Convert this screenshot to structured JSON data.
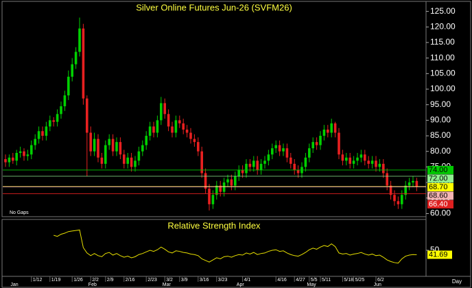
{
  "chart_data": [
    {
      "type": "candlestick",
      "title": "Silver Online Futures Jun-26 (SVFM26)",
      "note": "No Gaps",
      "period": "Day",
      "categories": [
        null,
        null,
        null,
        null,
        null,
        null,
        null,
        "1/12",
        null,
        null,
        null,
        null,
        "1/19",
        null,
        null,
        null,
        null,
        null,
        "1/26",
        null,
        null,
        null,
        null,
        "2/2",
        null,
        null,
        null,
        "2/9",
        null,
        null,
        null,
        null,
        "2/16",
        null,
        null,
        null,
        null,
        null,
        "2/23",
        null,
        null,
        null,
        null,
        "3/2",
        null,
        null,
        null,
        "3/9",
        null,
        null,
        null,
        null,
        "3/16",
        null,
        null,
        null,
        null,
        "3/23",
        null,
        null,
        null,
        null,
        null,
        null,
        "4/1",
        null,
        null,
        null,
        null,
        null,
        null,
        null,
        null,
        "4/16",
        null,
        null,
        null,
        null,
        "4/27",
        null,
        null,
        null,
        "5/5",
        null,
        null,
        "5/11",
        null,
        null,
        null,
        null,
        null,
        "5/18",
        null,
        null,
        "5/25",
        null,
        null,
        null,
        null,
        null,
        "6/2",
        null,
        null,
        null,
        null,
        null,
        null,
        null,
        null,
        null,
        null,
        null
      ],
      "months": [
        null,
        "Jan",
        null,
        null,
        null,
        null,
        null,
        null,
        null,
        null,
        null,
        null,
        null,
        null,
        null,
        null,
        null,
        null,
        null,
        null,
        null,
        null,
        "Feb",
        null,
        null,
        null,
        null,
        null,
        null,
        null,
        null,
        null,
        null,
        null,
        null,
        null,
        null,
        null,
        null,
        null,
        null,
        null,
        "Mar",
        null,
        null,
        null,
        null,
        null,
        null,
        null,
        null,
        null,
        null,
        null,
        null,
        null,
        null,
        null,
        null,
        null,
        null,
        null,
        "Apr",
        null,
        null,
        null,
        null,
        null,
        null,
        null,
        null,
        null,
        null,
        null,
        null,
        null,
        null,
        null,
        null,
        null,
        null,
        "May",
        null,
        null,
        null,
        null,
        null,
        null,
        null,
        null,
        null,
        null,
        null,
        null,
        null,
        null,
        null,
        null,
        null,
        "Jun",
        null,
        null,
        null,
        null,
        null,
        null,
        null,
        null,
        null,
        null,
        null
      ],
      "series": [
        {
          "up_color": "#00d000",
          "down_color": "#e82020",
          "open": [
            77.5,
            76.5,
            78,
            77,
            79.5,
            80,
            78.5,
            79,
            82,
            84,
            86.5,
            85,
            88,
            90,
            89.5,
            92,
            94.5,
            98,
            104,
            108,
            112,
            119.5,
            97,
            86,
            80,
            84,
            78,
            76,
            82,
            84,
            80,
            83,
            79,
            76,
            78,
            75,
            77,
            80,
            82,
            85,
            88,
            86,
            90,
            95.5,
            92,
            88,
            86,
            90,
            89,
            87,
            86,
            84,
            83,
            80,
            73,
            68,
            63,
            66,
            69,
            67,
            70,
            71,
            69,
            72,
            74,
            73,
            76,
            75,
            77,
            74,
            76,
            77,
            79,
            81,
            82,
            80,
            81,
            78,
            76,
            74,
            73,
            75,
            78,
            81,
            83,
            82,
            85,
            87,
            86,
            89,
            86,
            79,
            77,
            78,
            76,
            77,
            78,
            79,
            77,
            76,
            77,
            75,
            76,
            73,
            69,
            66,
            64,
            63,
            66,
            69,
            70,
            70.5
          ],
          "high": [
            79,
            79,
            79.5,
            80.5,
            81.5,
            81,
            80.5,
            83.5,
            85.5,
            88,
            88,
            89.5,
            91.5,
            91,
            93.5,
            96,
            99.5,
            106,
            110,
            113.5,
            123,
            121,
            98,
            88,
            86,
            85.5,
            79.5,
            83.5,
            85.5,
            85.5,
            84.5,
            84.5,
            80.5,
            79.5,
            79.5,
            78.5,
            81.5,
            83.5,
            86.5,
            89.5,
            89.5,
            91.5,
            97.5,
            97,
            93.5,
            89.5,
            91.5,
            91.5,
            90.5,
            88.5,
            87.5,
            85.5,
            84.5,
            81.5,
            74.5,
            69.5,
            67.5,
            70.5,
            70.5,
            71.5,
            72.5,
            72.5,
            73.5,
            75.5,
            75.5,
            77.5,
            77.5,
            78.5,
            78.5,
            77.5,
            78.5,
            80.5,
            82.5,
            83.5,
            83.5,
            82.5,
            82.5,
            79.5,
            77.5,
            75.5,
            76.5,
            79.5,
            82.5,
            84.5,
            84.5,
            86.5,
            88.5,
            88.5,
            90.5,
            89.5,
            87.5,
            80.5,
            79.5,
            79.5,
            78.5,
            79.5,
            80.5,
            80.5,
            78.5,
            78.5,
            78.5,
            77.5,
            77.5,
            74.5,
            70.5,
            67.5,
            65.5,
            67.5,
            70.5,
            71.5,
            72,
            71.5
          ],
          "low": [
            75,
            75,
            76,
            75.5,
            78,
            77,
            77,
            77.5,
            80.5,
            82.5,
            83.5,
            83.5,
            86.5,
            88,
            88,
            90.5,
            93,
            96.5,
            102.5,
            106.5,
            110.5,
            95,
            72,
            78.5,
            78.5,
            76.5,
            74.5,
            74.5,
            80.5,
            78.5,
            78.5,
            77.5,
            74.5,
            74.5,
            73.5,
            73.5,
            75.5,
            78.5,
            80.5,
            83.5,
            84.5,
            84.5,
            88.5,
            90.5,
            86.5,
            84.5,
            84.5,
            87.5,
            85.5,
            84.5,
            82.5,
            81.5,
            78.5,
            71.5,
            66.5,
            61,
            61.5,
            64.5,
            65.5,
            65.5,
            68.5,
            67.5,
            67.5,
            70.5,
            71.5,
            71.5,
            73.5,
            73.5,
            72.5,
            72.5,
            74.5,
            75.5,
            77.5,
            79.5,
            78.5,
            78.5,
            76.5,
            74.5,
            72.5,
            71.5,
            71.5,
            73.5,
            76.5,
            79.5,
            80.5,
            80.5,
            83.5,
            84.5,
            84.5,
            84.5,
            77.5,
            75.5,
            75.5,
            74.5,
            74.5,
            75.5,
            76.5,
            75.5,
            74.5,
            74.5,
            73.5,
            73.5,
            71.5,
            67.5,
            64.5,
            62.5,
            61.5,
            61.5,
            64.5,
            67.5,
            68.5,
            67.2
          ],
          "close": [
            76.5,
            78,
            77,
            79.5,
            80,
            78.5,
            79,
            82,
            84,
            86.5,
            85,
            88,
            90,
            89.5,
            92,
            94.5,
            98,
            104,
            108,
            112,
            119.5,
            97,
            86,
            80,
            84,
            78,
            76,
            82,
            84,
            80,
            83,
            79,
            76,
            78,
            75,
            77,
            80,
            82,
            85,
            88,
            86,
            90,
            95.5,
            92,
            88,
            86,
            90,
            89,
            87,
            86,
            84,
            83,
            80,
            73,
            68,
            63,
            66,
            69,
            67,
            70,
            71,
            69,
            72,
            74,
            73,
            76,
            75,
            77,
            74,
            76,
            77,
            79,
            81,
            82,
            80,
            81,
            78,
            76,
            74,
            73,
            75,
            78,
            81,
            83,
            82,
            85,
            87,
            86,
            89,
            86,
            79,
            77,
            78,
            76,
            77,
            78,
            79,
            77,
            76,
            77,
            75,
            76,
            73,
            69,
            66,
            64,
            63,
            66,
            69,
            70,
            70.5,
            68.7
          ]
        }
      ],
      "ylim": [
        59,
        128
      ],
      "yticks": [
        {
          "value": 60,
          "label": "60.00"
        },
        {
          "value": 65,
          "label": "65.00"
        },
        {
          "value": 70,
          "label": "70.00"
        },
        {
          "value": 75,
          "label": "75.00"
        },
        {
          "value": 80,
          "label": "80.00"
        },
        {
          "value": 85,
          "label": "85.00"
        },
        {
          "value": 90,
          "label": "90.00"
        },
        {
          "value": 95,
          "label": "95.00"
        },
        {
          "value": 100,
          "label": "100.00"
        },
        {
          "value": 105,
          "label": "105.00"
        },
        {
          "value": 110,
          "label": "110.00"
        },
        {
          "value": 115,
          "label": "115.00"
        },
        {
          "value": 120,
          "label": "120.00"
        },
        {
          "value": 125,
          "label": "125.00"
        }
      ],
      "levels": [
        {
          "value": 74,
          "label": "74.00",
          "color": "#00c800"
        },
        {
          "value": 72,
          "label": "72.00",
          "color": "#90ee90"
        },
        {
          "value": 68.7,
          "label": "68.70",
          "color": "#ffff00"
        },
        {
          "value": 68.6,
          "label": "68.60",
          "color": "#f4b4b4"
        },
        {
          "value": 66.4,
          "label": "66.40",
          "color": "#e02020"
        }
      ]
    },
    {
      "type": "line",
      "title": "Relative Strength Index",
      "series": [
        {
          "color": "#e8e000",
          "values": [
            null,
            null,
            null,
            null,
            null,
            null,
            null,
            null,
            null,
            null,
            null,
            null,
            null,
            78,
            76,
            80,
            82,
            85,
            86,
            87,
            88,
            55,
            45,
            40,
            44,
            40,
            38,
            44,
            46,
            41,
            44,
            40,
            37,
            39,
            36,
            38,
            42,
            44,
            47,
            50,
            48,
            51,
            56,
            52,
            47,
            45,
            49,
            48,
            46,
            45,
            43,
            42,
            40,
            34,
            31,
            28,
            32,
            36,
            34,
            38,
            39,
            37,
            40,
            42,
            41,
            45,
            43,
            46,
            42,
            44,
            45,
            48,
            50,
            51,
            48,
            49,
            45,
            42,
            40,
            39,
            42,
            46,
            51,
            54,
            52,
            56,
            59,
            57,
            62,
            57,
            45,
            43,
            44,
            41,
            43,
            44,
            46,
            43,
            41,
            43,
            40,
            41,
            37,
            32,
            29,
            27,
            26,
            34,
            39,
            41,
            42,
            41.69
          ]
        }
      ],
      "ylim": [
        0,
        100
      ],
      "yticks": [
        50
      ]
    }
  ]
}
